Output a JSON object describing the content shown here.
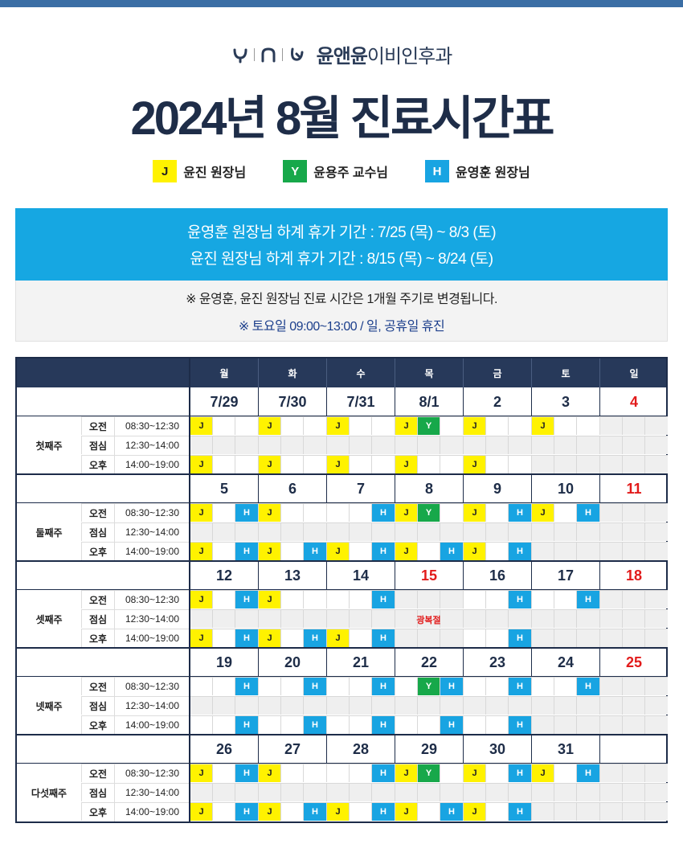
{
  "brand": {
    "name_bold": "윤앤윤",
    "name_light": "이비인후과"
  },
  "title": "2024년 8월 진료시간표",
  "legend": [
    {
      "code": "J",
      "label": "윤진 원장님",
      "color": "#fff200",
      "text_color": "#222222"
    },
    {
      "code": "Y",
      "label": "윤용주 교수님",
      "color": "#17a84a",
      "text_color": "#ffffff"
    },
    {
      "code": "H",
      "label": "윤영훈 원장님",
      "color": "#18a4e2",
      "text_color": "#ffffff"
    }
  ],
  "vacation": [
    "윤영훈 원장님 하계 휴가 기간 : 7/25 (목) ~ 8/3 (토)",
    "윤진 원장님 하계 휴가 기간 : 8/15 (목) ~ 8/24 (토)"
  ],
  "notice": [
    "※ 윤영훈, 윤진 원장님 진료 시간은 1개월 주기로 변경됩니다.",
    "※ 토요일  09:00~13:00 / 일, 공휴일 휴진"
  ],
  "days": [
    "월",
    "화",
    "수",
    "목",
    "금",
    "토",
    "일"
  ],
  "slots": [
    {
      "name": "오전",
      "time": "08:30~12:30"
    },
    {
      "name": "점심",
      "time": "12:30~14:00"
    },
    {
      "name": "오후",
      "time": "14:00~19:00"
    }
  ],
  "weeks": [
    {
      "label": "첫째주",
      "dates": [
        "7/29",
        "7/30",
        "7/31",
        "8/1",
        "2",
        "3",
        "4"
      ],
      "red": [
        6
      ],
      "am": [
        [
          "J",
          "",
          ""
        ],
        [
          "J",
          "",
          ""
        ],
        [
          "J",
          "",
          ""
        ],
        [
          "J",
          "Y",
          ""
        ],
        [
          "J",
          "",
          ""
        ],
        [
          "J",
          "",
          ""
        ],
        [
          "",
          "",
          ""
        ]
      ],
      "pm": [
        [
          "J",
          "",
          ""
        ],
        [
          "J",
          "",
          ""
        ],
        [
          "J",
          "",
          ""
        ],
        [
          "J",
          "",
          ""
        ],
        [
          "J",
          "",
          ""
        ],
        [
          "",
          "",
          ""
        ],
        [
          "",
          "",
          ""
        ]
      ],
      "white_am": [
        0,
        1,
        2,
        3,
        4,
        5
      ],
      "white_pm": [
        0,
        1,
        2,
        3,
        4
      ],
      "holiday_day": null
    },
    {
      "label": "둘째주",
      "dates": [
        "5",
        "6",
        "7",
        "8",
        "9",
        "10",
        "11"
      ],
      "red": [
        6
      ],
      "am": [
        [
          "J",
          "",
          "H"
        ],
        [
          "J",
          "",
          ""
        ],
        [
          "",
          "",
          "H"
        ],
        [
          "J",
          "Y",
          ""
        ],
        [
          "J",
          "",
          "H"
        ],
        [
          "J",
          "",
          "H"
        ],
        [
          "",
          "",
          ""
        ]
      ],
      "pm": [
        [
          "J",
          "",
          "H"
        ],
        [
          "J",
          "",
          "H"
        ],
        [
          "J",
          "",
          "H"
        ],
        [
          "J",
          "",
          "H"
        ],
        [
          "J",
          "",
          "H"
        ],
        [
          "",
          "",
          ""
        ],
        [
          "",
          "",
          ""
        ]
      ],
      "white_am": [
        0,
        1,
        2,
        3,
        4,
        5
      ],
      "white_pm": [
        0,
        1,
        2,
        3,
        4
      ],
      "holiday_day": null
    },
    {
      "label": "셋째주",
      "dates": [
        "12",
        "13",
        "14",
        "15",
        "16",
        "17",
        "18"
      ],
      "red": [
        3,
        6
      ],
      "am": [
        [
          "J",
          "",
          "H"
        ],
        [
          "J",
          "",
          ""
        ],
        [
          "",
          "",
          "H"
        ],
        [
          "",
          "",
          ""
        ],
        [
          "",
          "",
          "H"
        ],
        [
          "",
          "",
          "H"
        ],
        [
          "",
          "",
          ""
        ]
      ],
      "pm": [
        [
          "J",
          "",
          "H"
        ],
        [
          "J",
          "",
          "H"
        ],
        [
          "J",
          "",
          "H"
        ],
        [
          "",
          "",
          ""
        ],
        [
          "",
          "",
          "H"
        ],
        [
          "",
          "",
          ""
        ],
        [
          "",
          "",
          ""
        ]
      ],
      "white_am": [
        0,
        1,
        2,
        4,
        5
      ],
      "white_pm": [
        0,
        1,
        2,
        4
      ],
      "holiday_day": 3,
      "holiday_label": "광복절"
    },
    {
      "label": "넷째주",
      "dates": [
        "19",
        "20",
        "21",
        "22",
        "23",
        "24",
        "25"
      ],
      "red": [
        6
      ],
      "am": [
        [
          "",
          "",
          "H"
        ],
        [
          "",
          "",
          "H"
        ],
        [
          "",
          "",
          "H"
        ],
        [
          "",
          "Y",
          "H"
        ],
        [
          "",
          "",
          "H"
        ],
        [
          "",
          "",
          "H"
        ],
        [
          "",
          "",
          ""
        ]
      ],
      "pm": [
        [
          "",
          "",
          "H"
        ],
        [
          "",
          "",
          "H"
        ],
        [
          "",
          "",
          "H"
        ],
        [
          "",
          "",
          "H"
        ],
        [
          "",
          "",
          "H"
        ],
        [
          "",
          "",
          ""
        ],
        [
          "",
          "",
          ""
        ]
      ],
      "white_am": [
        0,
        1,
        2,
        3,
        4,
        5
      ],
      "white_pm": [
        0,
        1,
        2,
        3,
        4
      ],
      "holiday_day": null
    },
    {
      "label": "다섯째주",
      "dates": [
        "26",
        "27",
        "28",
        "29",
        "30",
        "31",
        ""
      ],
      "red": [],
      "am": [
        [
          "J",
          "",
          "H"
        ],
        [
          "J",
          "",
          ""
        ],
        [
          "",
          "",
          "H"
        ],
        [
          "J",
          "Y",
          ""
        ],
        [
          "J",
          "",
          "H"
        ],
        [
          "J",
          "",
          "H"
        ],
        [
          "",
          "",
          ""
        ]
      ],
      "pm": [
        [
          "J",
          "",
          "H"
        ],
        [
          "J",
          "",
          "H"
        ],
        [
          "J",
          "",
          "H"
        ],
        [
          "J",
          "",
          "H"
        ],
        [
          "J",
          "",
          "H"
        ],
        [
          "",
          "",
          ""
        ],
        [
          "",
          "",
          ""
        ]
      ],
      "white_am": [
        0,
        1,
        2,
        3,
        4,
        5
      ],
      "white_pm": [
        0,
        1,
        2,
        3,
        4
      ],
      "holiday_day": null
    }
  ]
}
